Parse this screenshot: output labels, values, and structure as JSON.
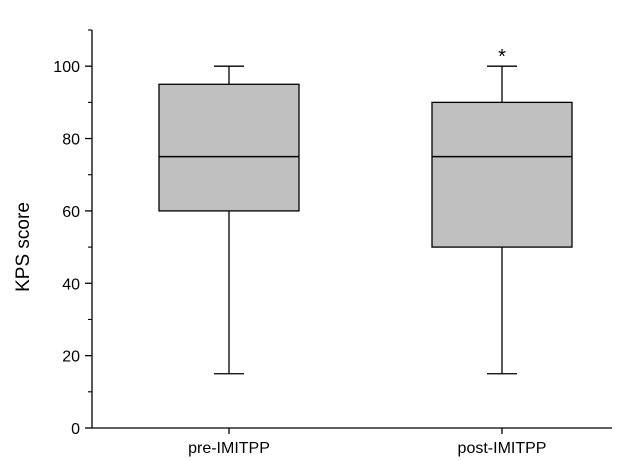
{
  "chart_data": {
    "type": "box",
    "title": "",
    "xlabel": "",
    "ylabel": "KPS score",
    "ylim": [
      0,
      110
    ],
    "yticks": [
      0,
      20,
      40,
      60,
      80,
      100
    ],
    "grid": false,
    "legend": "none",
    "box_color": "#c0c0c0",
    "categories": [
      "pre-IMITPP",
      "post-IMITPP"
    ],
    "boxes": [
      {
        "category": "pre-IMITPP",
        "min": 15,
        "q1": 60,
        "median": 75,
        "q3": 95,
        "max": 100,
        "annotation": ""
      },
      {
        "category": "post-IMITPP",
        "min": 15,
        "q1": 50,
        "median": 75,
        "q3": 90,
        "max": 100,
        "annotation": "*"
      }
    ]
  }
}
